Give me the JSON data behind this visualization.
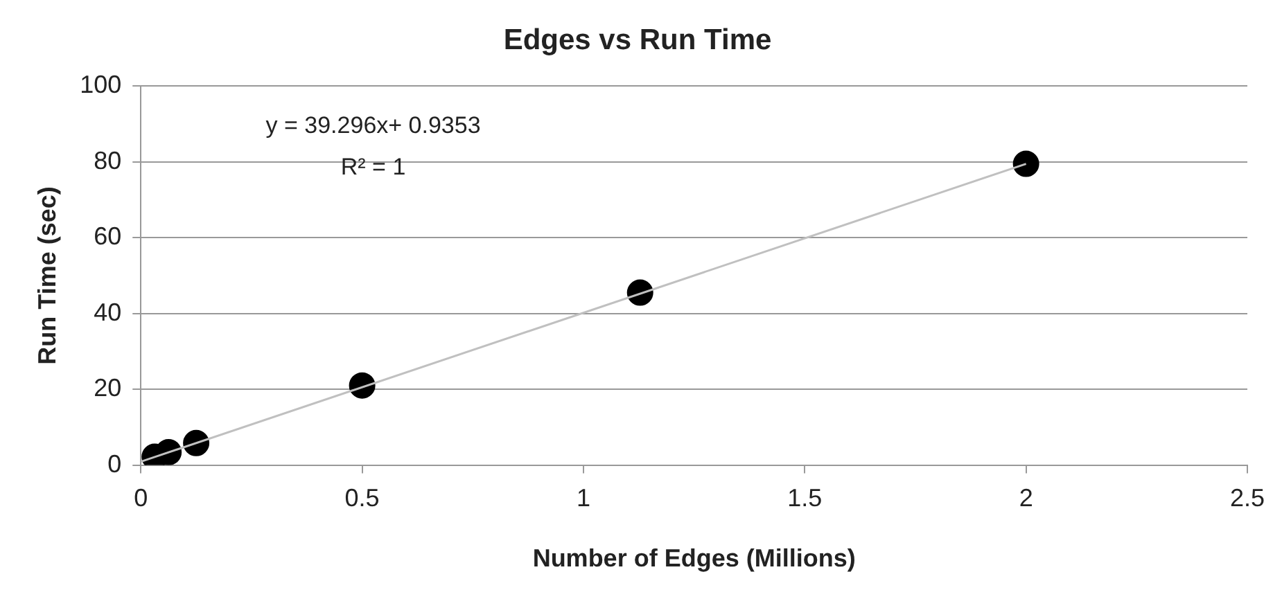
{
  "chart_data": {
    "type": "scatter",
    "title": "Edges vs Run Time",
    "xlabel": "Number of Edges (Millions)",
    "ylabel": "Run Time (sec)",
    "series": [
      {
        "type": "scatter",
        "color": "#000000",
        "x": [
          0.03125,
          0.0625,
          0.125,
          0.5,
          1.128,
          2
        ],
        "values": [
          2.2,
          3.4,
          5.8,
          21,
          45.5,
          79.5
        ]
      },
      {
        "type": "line",
        "color": "#c0c0c0",
        "marker": "none",
        "x": [
          0,
          2
        ],
        "values": [
          0.9,
          79.5
        ]
      }
    ],
    "xlim": [
      0,
      2.5
    ],
    "xticks": [
      0,
      0.5,
      1,
      1.5,
      2,
      2.5
    ],
    "ylim": [
      0,
      100
    ],
    "yticks": [
      0,
      20,
      40,
      60,
      80,
      100
    ],
    "grid": "y",
    "legend": false,
    "marker": "circle",
    "annotations": [
      "y = 39.296x+ 0.9353",
      "R² = 1"
    ]
  }
}
